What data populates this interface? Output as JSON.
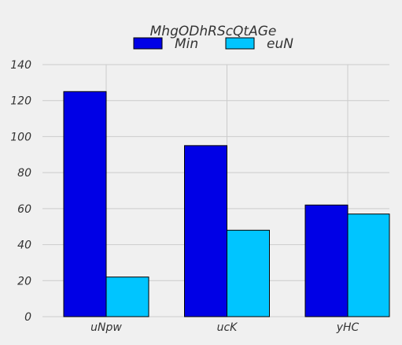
{
  "chart_data": {
    "type": "bar",
    "title": "",
    "legend_title": "MhgODhRScQtAGe",
    "legend_position": "top-center",
    "categories": [
      "uNpw",
      "ucK",
      "yHC"
    ],
    "series": [
      {
        "name": "Min",
        "values": [
          125,
          95,
          62
        ],
        "color": "#0000e6"
      },
      {
        "name": "euN",
        "values": [
          22,
          48,
          57
        ],
        "color": "#00c5ff"
      }
    ],
    "ylim": [
      0,
      140
    ],
    "yticks": [
      0,
      20,
      40,
      60,
      80,
      100,
      120,
      140
    ],
    "grid": true,
    "xlabel": "",
    "ylabel": ""
  },
  "colors": {
    "background": "#f0f0f0",
    "grid": "#cbcbcb",
    "bar_edge": "#000000",
    "text": "#333333"
  }
}
